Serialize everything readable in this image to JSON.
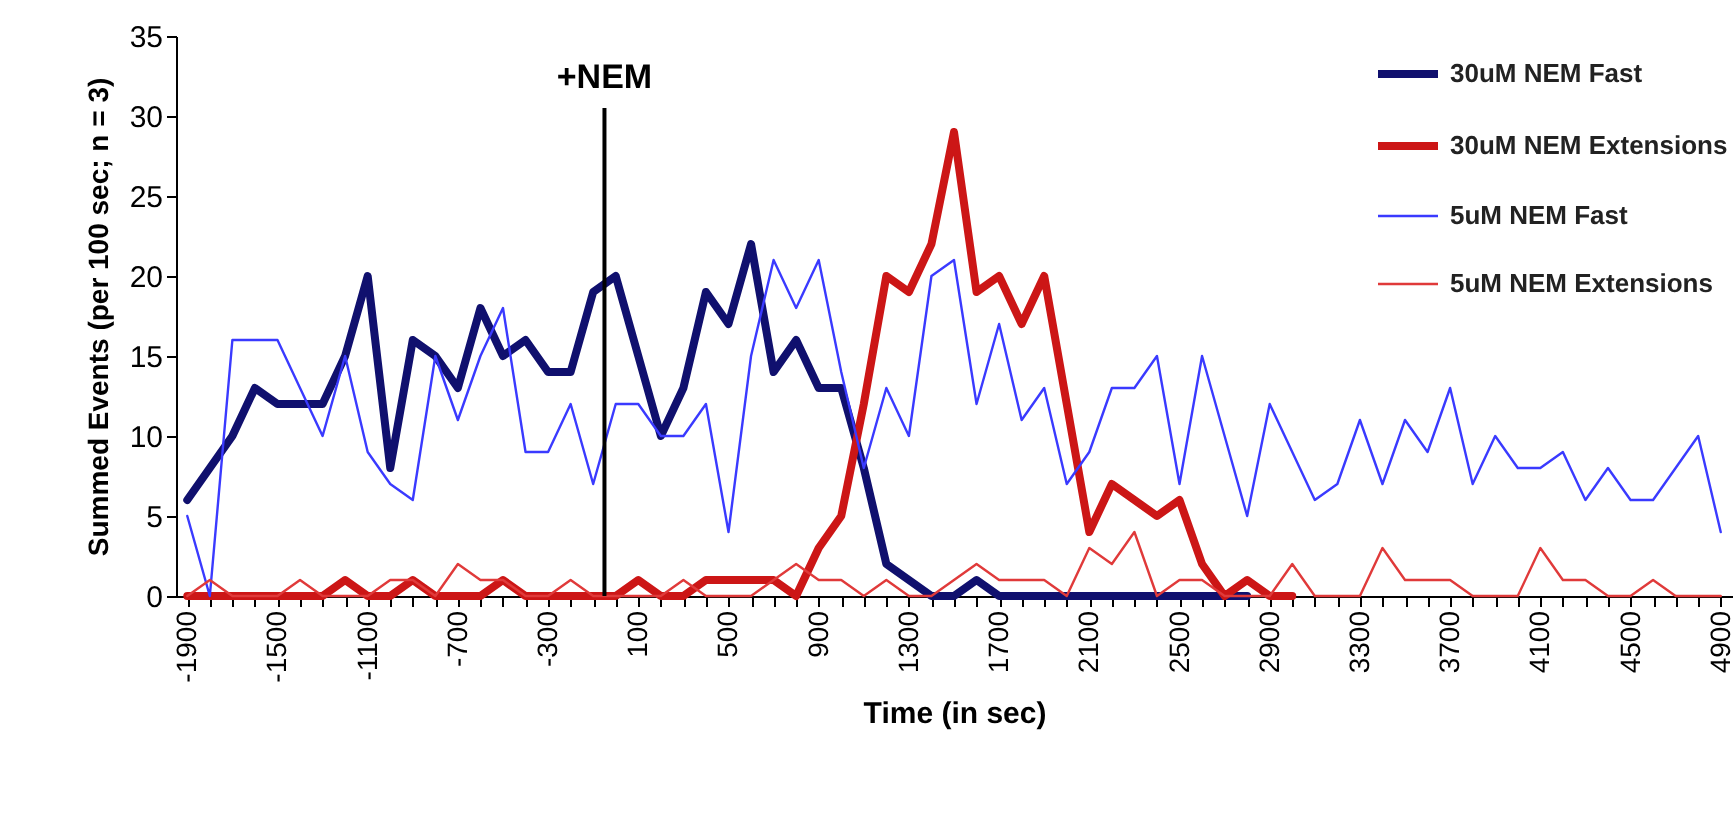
{
  "chart_data": {
    "type": "line",
    "xlabel": "Time (in sec)",
    "ylabel": "Summed Events (per 100 sec; n = 3)",
    "x": [
      -1900,
      -1800,
      -1700,
      -1600,
      -1500,
      -1400,
      -1300,
      -1200,
      -1100,
      -1000,
      -900,
      -800,
      -700,
      -600,
      -500,
      -400,
      -300,
      -200,
      -100,
      0,
      100,
      200,
      300,
      400,
      500,
      600,
      700,
      800,
      900,
      1000,
      1100,
      1200,
      1300,
      1400,
      1500,
      1600,
      1700,
      1800,
      1900,
      2000,
      2100,
      2200,
      2300,
      2400,
      2500,
      2600,
      2700,
      2800,
      2900,
      3000,
      3100,
      3200,
      3300,
      3400,
      3500,
      3600,
      3700,
      3800,
      3900,
      4000,
      4100,
      4200,
      4300,
      4400,
      4500,
      4600,
      4700,
      4800,
      4900
    ],
    "series": [
      {
        "name": "30uM NEM Fast",
        "color": "#10106e",
        "values": [
          6,
          8,
          10,
          13,
          12,
          12,
          12,
          15,
          20,
          8,
          16,
          15,
          13,
          18,
          15,
          16,
          14,
          14,
          19,
          20,
          15,
          10,
          13,
          19,
          17,
          22,
          14,
          16,
          13,
          13,
          8,
          2,
          1,
          0,
          0,
          1,
          0,
          0,
          0,
          0,
          0,
          0,
          0,
          0,
          0,
          0,
          0,
          0,
          null,
          null,
          null,
          null,
          null,
          null,
          null,
          null,
          null,
          null,
          null,
          null,
          null,
          null,
          null,
          null,
          null,
          null,
          null,
          null,
          null
        ]
      },
      {
        "name": "30uM NEM Extensions",
        "color": "#cc1616",
        "values": [
          0,
          0,
          0,
          0,
          0,
          0,
          0,
          1,
          0,
          0,
          1,
          0,
          0,
          0,
          1,
          0,
          0,
          0,
          0,
          0,
          1,
          0,
          0,
          1,
          1,
          1,
          1,
          0,
          3,
          5,
          12,
          20,
          19,
          22,
          29,
          19,
          20,
          17,
          20,
          12,
          4,
          7,
          6,
          5,
          6,
          2,
          0,
          1,
          0,
          0,
          null,
          null,
          null,
          null,
          null,
          null,
          null,
          null,
          null,
          null,
          null,
          null,
          null,
          null,
          null,
          null,
          null,
          null,
          null
        ]
      },
      {
        "name": "5uM NEM Fast",
        "color": "#3a3aff",
        "values": [
          5,
          0,
          16,
          16,
          16,
          13,
          10,
          15,
          9,
          7,
          6,
          15,
          11,
          15,
          18,
          9,
          9,
          12,
          7,
          12,
          12,
          10,
          10,
          12,
          4,
          15,
          21,
          18,
          21,
          14,
          8,
          13,
          10,
          20,
          21,
          12,
          17,
          11,
          13,
          7,
          9,
          13,
          13,
          15,
          7,
          15,
          10,
          5,
          12,
          9,
          6,
          7,
          11,
          7,
          11,
          9,
          13,
          7,
          10,
          8,
          8,
          9,
          6,
          8,
          6,
          6,
          8,
          10,
          4
        ]
      },
      {
        "name": "5uM NEM Extensions",
        "color": "#e03a3a",
        "values": [
          0,
          1,
          0,
          0,
          0,
          1,
          0,
          0,
          0,
          1,
          1,
          0,
          2,
          1,
          1,
          0,
          0,
          1,
          0,
          0,
          0,
          0,
          1,
          0,
          0,
          0,
          1,
          2,
          1,
          1,
          0,
          1,
          0,
          0,
          1,
          2,
          1,
          1,
          1,
          0,
          3,
          2,
          4,
          0,
          1,
          1,
          0,
          0,
          0,
          2,
          0,
          0,
          0,
          3,
          1,
          1,
          1,
          0,
          0,
          0,
          3,
          1,
          1,
          0,
          0,
          1,
          0,
          0,
          0
        ]
      }
    ],
    "xlim": [
      -1950,
      4950
    ],
    "xticks": [
      -1900,
      {
        "value": -1800,
        "label": null
      },
      {
        "value": -1700,
        "label": null
      },
      {
        "value": -1600,
        "label": null
      },
      -1500,
      {
        "value": -1400,
        "label": null
      },
      {
        "value": -1300,
        "label": null
      },
      {
        "value": -1200,
        "label": null
      },
      -1100,
      {
        "value": -1000,
        "label": null
      },
      {
        "value": -900,
        "label": null
      },
      {
        "value": -800,
        "label": null
      },
      -700,
      {
        "value": -600,
        "label": null
      },
      {
        "value": -500,
        "label": null
      },
      {
        "value": -400,
        "label": null
      },
      -300,
      {
        "value": -200,
        "label": null
      },
      {
        "value": -100,
        "label": null
      },
      {
        "value": 0,
        "label": null
      },
      100,
      {
        "value": 200,
        "label": null
      },
      {
        "value": 300,
        "label": null
      },
      {
        "value": 400,
        "label": null
      },
      500,
      {
        "value": 600,
        "label": null
      },
      {
        "value": 700,
        "label": null
      },
      {
        "value": 800,
        "label": null
      },
      900,
      {
        "value": 1000,
        "label": null
      },
      {
        "value": 1100,
        "label": null
      },
      {
        "value": 1200,
        "label": null
      },
      1300,
      {
        "value": 1400,
        "label": null
      },
      {
        "value": 1500,
        "label": null
      },
      {
        "value": 1600,
        "label": null
      },
      1700,
      {
        "value": 1800,
        "label": null
      },
      {
        "value": 1900,
        "label": null
      },
      {
        "value": 2000,
        "label": null
      },
      2100,
      {
        "value": 2200,
        "label": null
      },
      {
        "value": 2300,
        "label": null
      },
      {
        "value": 2400,
        "label": null
      },
      2500,
      {
        "value": 2600,
        "label": null
      },
      {
        "value": 2700,
        "label": null
      },
      {
        "value": 2800,
        "label": null
      },
      2900,
      {
        "value": 3000,
        "label": null
      },
      {
        "value": 3100,
        "label": null
      },
      {
        "value": 3200,
        "label": null
      },
      3300,
      {
        "value": 3400,
        "label": null
      },
      {
        "value": 3500,
        "label": null
      },
      {
        "value": 3600,
        "label": null
      },
      3700,
      {
        "value": 3800,
        "label": null
      },
      {
        "value": 3900,
        "label": null
      },
      {
        "value": 4000,
        "label": null
      },
      4100,
      {
        "value": 4200,
        "label": null
      },
      {
        "value": 4300,
        "label": null
      },
      {
        "value": 4400,
        "label": null
      },
      4500,
      {
        "value": 4600,
        "label": null
      },
      {
        "value": 4700,
        "label": null
      },
      {
        "value": 4800,
        "label": null
      },
      4900
    ],
    "ylim": [
      0,
      35
    ],
    "yticks": [
      0,
      5,
      10,
      15,
      20,
      25,
      30,
      35
    ],
    "ref_lines": [
      {
        "axis": "x",
        "value": -50,
        "label": "+NEM",
        "color": "#000000"
      }
    ],
    "grid": false,
    "legend": "top right",
    "marker": "none",
    "line_style": "solid"
  }
}
